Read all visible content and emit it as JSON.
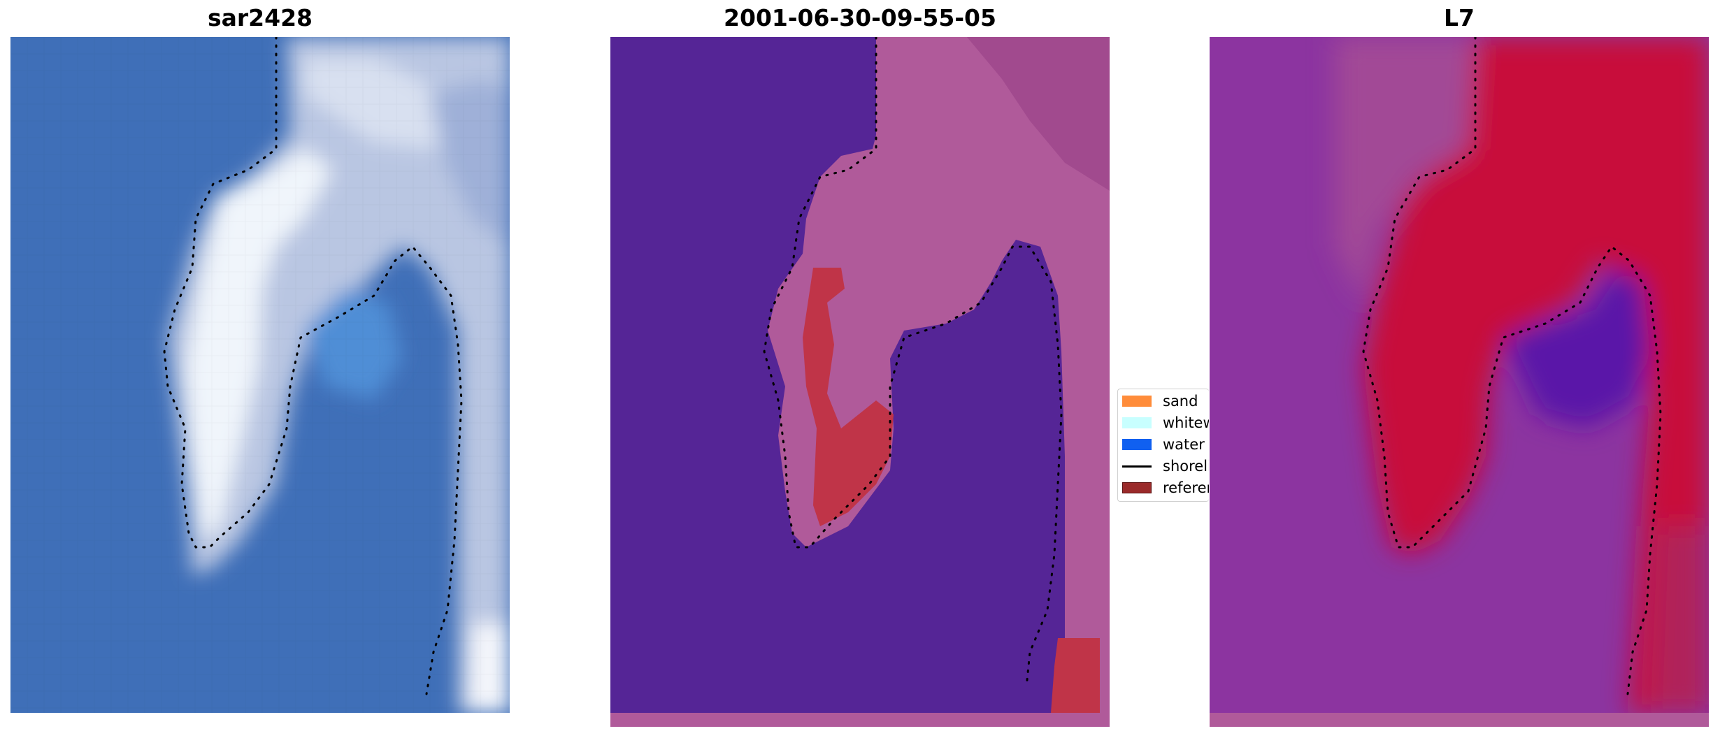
{
  "panels": [
    {
      "title": "sar2428",
      "kind": "rgb"
    },
    {
      "title": "2001-06-30-09-55-05",
      "kind": "classified"
    },
    {
      "title": "L7",
      "kind": "index"
    }
  ],
  "legend": {
    "items": [
      {
        "label": "sand",
        "color": "#ff8c3a",
        "type": "patch"
      },
      {
        "label": "whitewater",
        "color": "#c8ffff",
        "type": "patch"
      },
      {
        "label": "water",
        "color": "#1060f0",
        "type": "patch"
      },
      {
        "label": "shoreline",
        "color": "#000000",
        "type": "line"
      },
      {
        "label": "reference",
        "color": "#9a2a2a",
        "type": "patch"
      }
    ]
  },
  "colors": {
    "rgb_water": "#3f6fb8",
    "rgb_foam": "#dfe8f4",
    "class_water": "#552596",
    "class_land": "#b05a9a",
    "class_sand": "#c03448",
    "index_low": "#7a2a9a",
    "index_high": "#c80a3a",
    "index_mid": "#b0408e",
    "index_deep": "#5210a8"
  }
}
